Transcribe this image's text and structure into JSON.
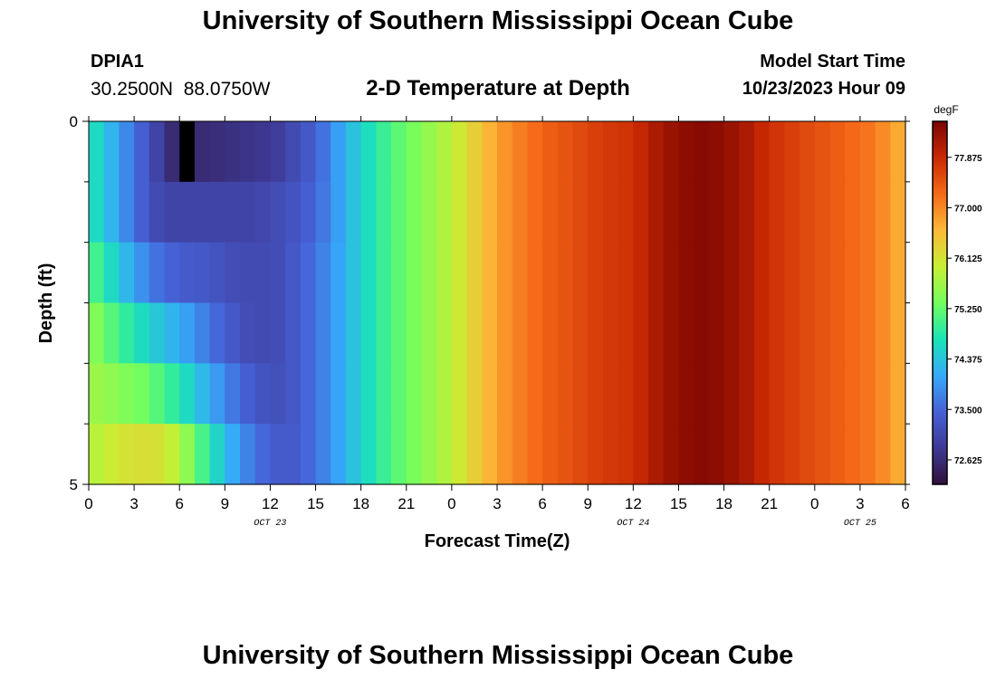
{
  "header": {
    "title": "University of Southern Mississippi Ocean Cube",
    "station_id": "DPIA1",
    "station_coords": "30.2500N  88.0750W",
    "chart_title": "2-D Temperature at Depth",
    "model_start_label": "Model Start Time",
    "model_start_value": "10/23/2023 Hour 09"
  },
  "footer": {
    "title": "University of Southern Mississippi Ocean Cube"
  },
  "chart_data": {
    "type": "heatmap",
    "title": "2-D Temperature at Depth",
    "xlabel": "Forecast Time(Z)",
    "ylabel": "Depth (ft)",
    "x_tick_labels": [
      "0",
      "3",
      "6",
      "9",
      "12",
      "15",
      "18",
      "21",
      "0",
      "3",
      "6",
      "9",
      "12",
      "15",
      "18",
      "21",
      "0",
      "3",
      "6"
    ],
    "date_labels": [
      {
        "label": "OCT 23",
        "tick_index": 4
      },
      {
        "label": "OCT 24",
        "tick_index": 12
      },
      {
        "label": "OCT 25",
        "tick_index": 17
      }
    ],
    "y_tick_labels": [
      {
        "label": "0",
        "depth": 0
      },
      {
        "label": "5",
        "depth": 5
      }
    ],
    "ylim": [
      0,
      5
    ],
    "colorbar": {
      "unit": "degF",
      "min": 72.2,
      "max": 78.5,
      "ticks": [
        "77.875",
        "77.000",
        "76.125",
        "75.250",
        "74.375",
        "73.500",
        "72.625"
      ],
      "tick_values": [
        77.875,
        77.0,
        76.125,
        75.25,
        74.375,
        73.5,
        72.625
      ]
    },
    "depth_layers": [
      0,
      1,
      2,
      3,
      4,
      5
    ],
    "hours": [
      0,
      2,
      4,
      5,
      6,
      7,
      8,
      9,
      10,
      11,
      12,
      13,
      14,
      15,
      16,
      17,
      18,
      19,
      20,
      21,
      22,
      23,
      24,
      25,
      26,
      27,
      28,
      30,
      32,
      34,
      36,
      37,
      38,
      39,
      40,
      41,
      42,
      43,
      44,
      45,
      46,
      48,
      50,
      52,
      54
    ],
    "temperature_profiles": [
      [
        74.8,
        74.0,
        73.2,
        72.8,
        72.4,
        72.6,
        72.6,
        72.7,
        72.7,
        72.8,
        72.8,
        73.0,
        73.2,
        73.4,
        73.8,
        74.2,
        74.5,
        74.8,
        75.1,
        75.3,
        75.5,
        75.7,
        75.9,
        76.2,
        76.5,
        76.8,
        77.0,
        77.3,
        77.5,
        77.7,
        77.8,
        78.0,
        78.2,
        78.3,
        78.4,
        78.4,
        78.3,
        78.2,
        78.0,
        77.8,
        77.7,
        77.5,
        77.3,
        77.1,
        76.6
      ],
      [
        74.8,
        74.0,
        73.2,
        73.0,
        73.0,
        73.0,
        73.0,
        73.0,
        73.0,
        73.0,
        73.1,
        73.2,
        73.3,
        73.5,
        73.8,
        74.2,
        74.5,
        74.8,
        75.1,
        75.3,
        75.5,
        75.7,
        75.9,
        76.2,
        76.5,
        76.8,
        77.0,
        77.3,
        77.5,
        77.7,
        77.8,
        78.0,
        78.2,
        78.3,
        78.4,
        78.4,
        78.3,
        78.2,
        78.0,
        77.8,
        77.7,
        77.5,
        77.3,
        77.1,
        76.6
      ],
      [
        75.2,
        74.4,
        73.7,
        73.5,
        73.4,
        73.3,
        73.3,
        73.2,
        73.1,
        73.1,
        73.1,
        73.2,
        73.4,
        73.6,
        73.9,
        74.2,
        74.5,
        74.8,
        75.1,
        75.3,
        75.5,
        75.7,
        75.9,
        76.2,
        76.5,
        76.8,
        77.0,
        77.3,
        77.5,
        77.7,
        77.8,
        78.0,
        78.2,
        78.3,
        78.4,
        78.4,
        78.3,
        78.2,
        78.0,
        77.8,
        77.7,
        77.5,
        77.3,
        77.1,
        76.6
      ],
      [
        75.6,
        75.0,
        74.5,
        74.3,
        74.1,
        73.9,
        73.6,
        73.4,
        73.2,
        73.1,
        73.1,
        73.2,
        73.4,
        73.6,
        73.9,
        74.2,
        74.5,
        74.8,
        75.1,
        75.3,
        75.5,
        75.7,
        75.9,
        76.2,
        76.5,
        76.8,
        77.0,
        77.3,
        77.5,
        77.7,
        77.8,
        78.0,
        78.2,
        78.3,
        78.4,
        78.4,
        78.3,
        78.2,
        78.0,
        77.8,
        77.7,
        77.5,
        77.3,
        77.1,
        76.6
      ],
      [
        75.7,
        75.5,
        75.3,
        75.0,
        74.8,
        74.4,
        74.1,
        73.8,
        73.5,
        73.3,
        73.2,
        73.2,
        73.4,
        73.6,
        73.9,
        74.2,
        74.5,
        74.8,
        75.1,
        75.3,
        75.5,
        75.7,
        75.9,
        76.2,
        76.5,
        76.8,
        77.0,
        77.3,
        77.5,
        77.7,
        77.8,
        78.0,
        78.2,
        78.3,
        78.4,
        78.4,
        78.3,
        78.2,
        78.0,
        77.8,
        77.7,
        77.5,
        77.3,
        77.1,
        76.6
      ],
      [
        75.8,
        76.1,
        76.2,
        76.1,
        75.8,
        75.3,
        74.8,
        74.3,
        73.9,
        73.6,
        73.4,
        73.3,
        73.4,
        73.6,
        73.9,
        74.2,
        74.5,
        74.8,
        75.1,
        75.3,
        75.5,
        75.7,
        75.9,
        76.2,
        76.5,
        76.8,
        77.0,
        77.3,
        77.5,
        77.7,
        77.8,
        78.0,
        78.2,
        78.3,
        78.4,
        78.4,
        78.3,
        78.2,
        78.0,
        77.8,
        77.7,
        77.5,
        77.3,
        77.1,
        76.6
      ]
    ],
    "missing_cell": {
      "hour": 6,
      "depth_layer": 0
    },
    "colors": {
      "missing": "#000000",
      "palette": [
        "#30123b",
        "#3e3994",
        "#4662d7",
        "#36aaf9",
        "#1ae4b6",
        "#72fe5e",
        "#c7ef34",
        "#fbb938",
        "#f56918",
        "#c92903",
        "#7a0403"
      ]
    }
  }
}
